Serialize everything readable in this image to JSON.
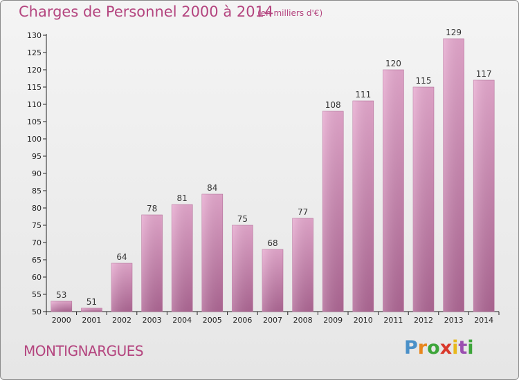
{
  "header": {
    "title": "Charges de Personnel 2000 à 2014",
    "unit": "(en milliers d'€)"
  },
  "footer": {
    "commune": "MONTIGNARGUES",
    "logo_text": "Proxiti"
  },
  "colors": {
    "title": "#b4457f",
    "bar_light": "#e6a6cd",
    "bar_dark": "#b16a98",
    "background": "#ececec"
  },
  "chart_data": {
    "type": "bar",
    "title": "Charges de Personnel 2000 à 2014",
    "subtitle": "(en milliers d'€)",
    "categories": [
      "2000",
      "2001",
      "2002",
      "2003",
      "2004",
      "2005",
      "2006",
      "2007",
      "2008",
      "2009",
      "2010",
      "2011",
      "2012",
      "2013",
      "2014"
    ],
    "values": [
      53,
      51,
      64,
      78,
      81,
      84,
      75,
      68,
      77,
      108,
      111,
      120,
      115,
      129,
      117
    ],
    "ylim": [
      50,
      130
    ],
    "yticks": [
      50,
      55,
      60,
      65,
      70,
      75,
      80,
      85,
      90,
      95,
      100,
      105,
      110,
      115,
      120,
      125,
      130
    ],
    "grid": false,
    "xlabel": "",
    "ylabel": ""
  }
}
